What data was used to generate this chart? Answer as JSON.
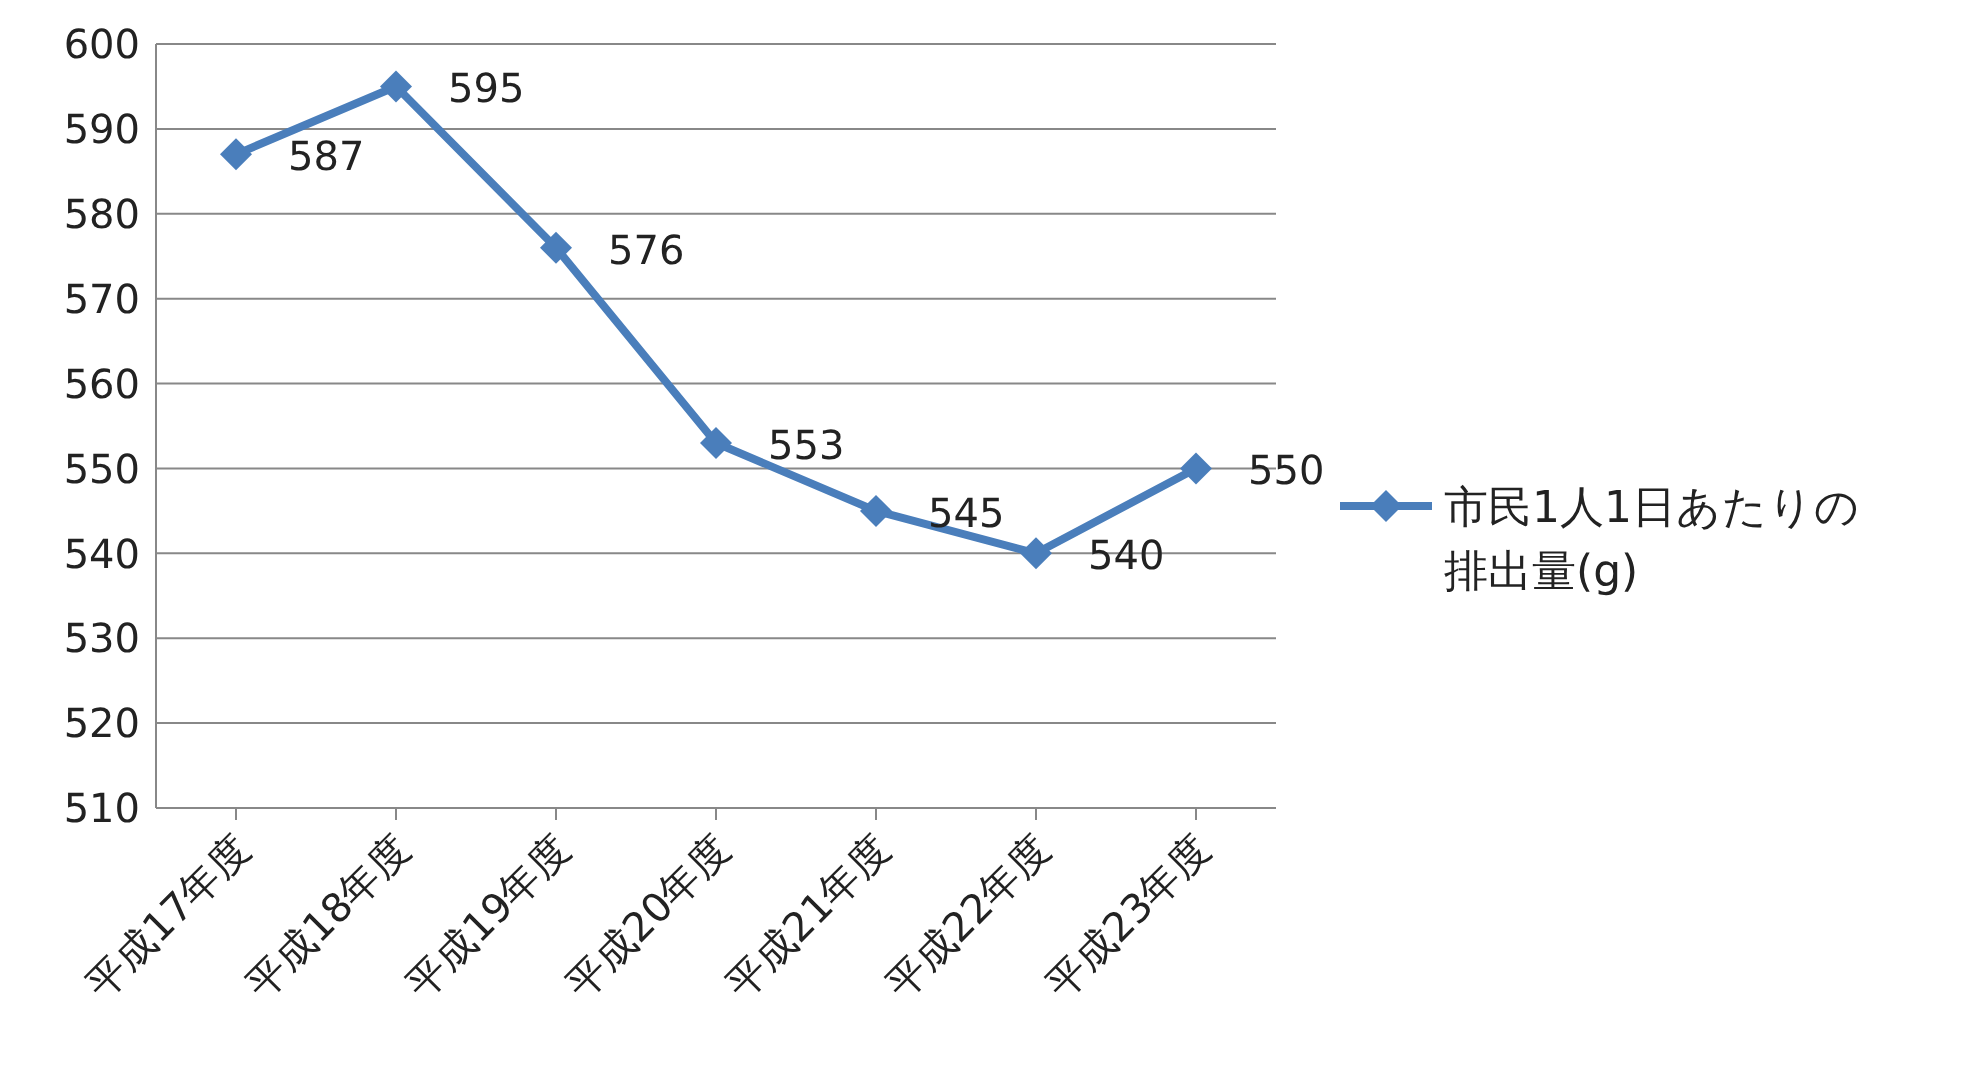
{
  "chart_data": {
    "type": "line",
    "categories": [
      "平成17年度",
      "平成18年度",
      "平成19年度",
      "平成20年度",
      "平成21年度",
      "平成22年度",
      "平成23年度"
    ],
    "series": [
      {
        "name": "市民1人1日あたりの排出量(g)",
        "color": "#4a7ebb",
        "values": [
          587,
          595,
          576,
          553,
          545,
          540,
          550
        ]
      }
    ],
    "ylim": [
      510,
      600
    ],
    "yticks": [
      510,
      520,
      530,
      540,
      550,
      560,
      570,
      580,
      590,
      600
    ],
    "grid": "y",
    "legend": "right",
    "marker": "diamond",
    "data_labels": true
  }
}
